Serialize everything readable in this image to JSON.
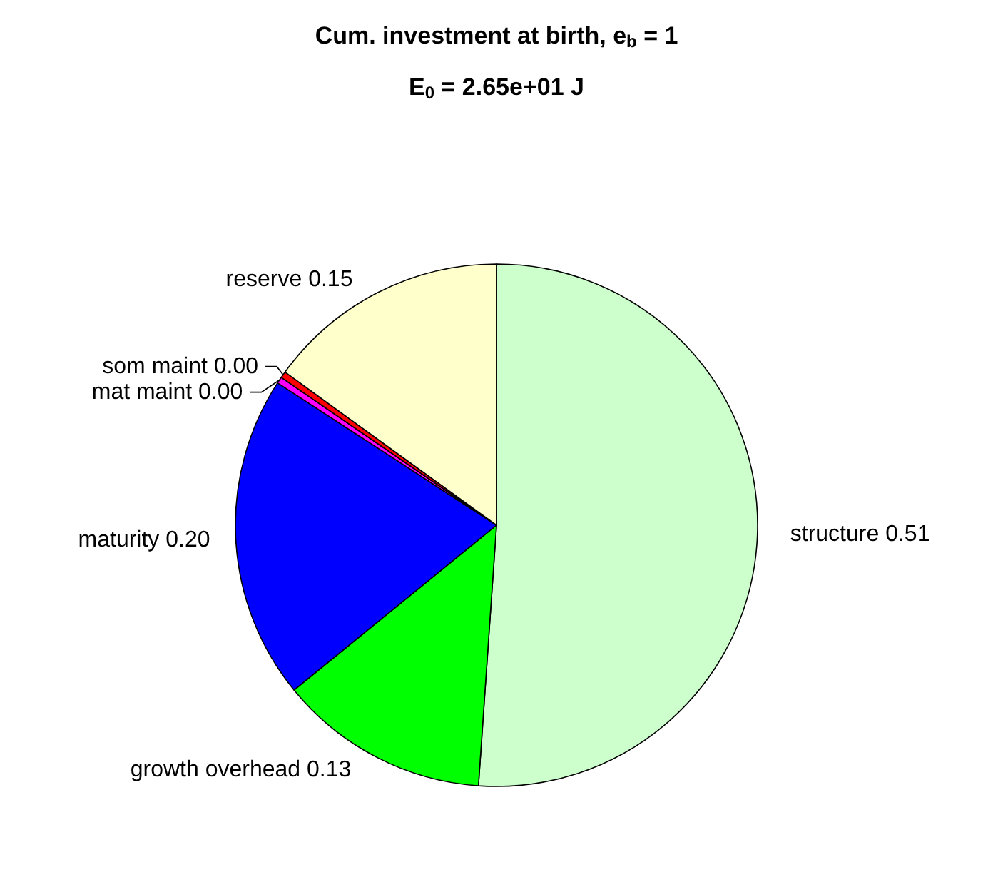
{
  "chart_data": {
    "type": "pie",
    "title": "Cum. investment at birth, e$_{b}$ = 1",
    "subtitle": "E$_{0}$ = 2.65e+01 J",
    "categories": [
      "structure",
      "growth overhead",
      "maturity",
      "mat maint",
      "som maint",
      "reserve"
    ],
    "values": [
      0.51,
      0.13,
      0.2,
      0.004,
      0.004,
      0.15
    ],
    "value_labels": [
      "0.51",
      "0.13",
      "0.20",
      "0.00",
      "0.00",
      "0.15"
    ],
    "colors": [
      "#ccffcc",
      "#00ff00",
      "#0000ff",
      "#ff00ff",
      "#ff0000",
      "#ffffcc"
    ],
    "legend": false
  }
}
